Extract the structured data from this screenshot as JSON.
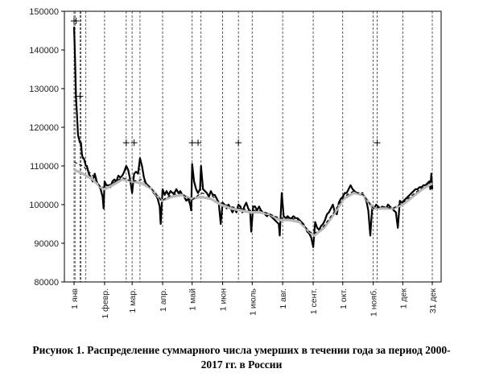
{
  "chart_data": {
    "type": "line",
    "ylim": [
      80000,
      150000
    ],
    "yticks": [
      80000,
      90000,
      100000,
      110000,
      120000,
      130000,
      140000,
      150000
    ],
    "ytick_labels": [
      "80000",
      "90000",
      "100000",
      "110000",
      "120000",
      "130000",
      "140000",
      "150000"
    ],
    "xlim": [
      1,
      365
    ],
    "xticks": [
      {
        "day": 1,
        "label": "1 янв"
      },
      {
        "day": 32,
        "label": "1 февр."
      },
      {
        "day": 60,
        "label": "1 мар."
      },
      {
        "day": 91,
        "label": "1 апр."
      },
      {
        "day": 121,
        "label": "1 май"
      },
      {
        "day": 152,
        "label": "1 июн"
      },
      {
        "day": 182,
        "label": "1 июль"
      },
      {
        "day": 213,
        "label": "1 авг."
      },
      {
        "day": 244,
        "label": "1 сент."
      },
      {
        "day": 274,
        "label": "1 окт."
      },
      {
        "day": 305,
        "label": "1 нояб."
      },
      {
        "day": 335,
        "label": "1 дек"
      },
      {
        "day": 365,
        "label": "31 дек"
      }
    ],
    "vlines_days": [
      1,
      2,
      7,
      8,
      13,
      32,
      54,
      60,
      68,
      91,
      121,
      130,
      152,
      168,
      182,
      213,
      244,
      274,
      305,
      309,
      335,
      365
    ],
    "grid": false,
    "series": [
      {
        "style": "black-thick",
        "points": [
          [
            1,
            146000
          ],
          [
            2,
            138000
          ],
          [
            3,
            128000
          ],
          [
            4,
            123000
          ],
          [
            5,
            118000
          ],
          [
            6,
            117000
          ],
          [
            7,
            116000
          ],
          [
            8,
            116000
          ],
          [
            9,
            113000
          ],
          [
            10,
            112000
          ],
          [
            11,
            112000
          ],
          [
            12,
            111000
          ],
          [
            13,
            110000
          ],
          [
            14,
            110000
          ],
          [
            15,
            109000
          ],
          [
            16,
            108000
          ],
          [
            18,
            107000
          ],
          [
            20,
            106000
          ],
          [
            22,
            108000
          ],
          [
            24,
            106000
          ],
          [
            26,
            105000
          ],
          [
            28,
            104000
          ],
          [
            30,
            102000
          ],
          [
            31,
            99000
          ],
          [
            32,
            106000
          ],
          [
            34,
            105000
          ],
          [
            36,
            105000
          ],
          [
            38,
            104500
          ],
          [
            40,
            106000
          ],
          [
            42,
            106500
          ],
          [
            44,
            106000
          ],
          [
            46,
            107500
          ],
          [
            48,
            107000
          ],
          [
            50,
            107500
          ],
          [
            52,
            108500
          ],
          [
            54,
            110000
          ],
          [
            56,
            109000
          ],
          [
            58,
            106500
          ],
          [
            60,
            103000
          ],
          [
            62,
            108000
          ],
          [
            64,
            108500
          ],
          [
            66,
            108000
          ],
          [
            68,
            112000
          ],
          [
            70,
            110000
          ],
          [
            72,
            107000
          ],
          [
            74,
            105500
          ],
          [
            76,
            105000
          ],
          [
            78,
            104500
          ],
          [
            80,
            104000
          ],
          [
            82,
            103000
          ],
          [
            84,
            102500
          ],
          [
            86,
            101500
          ],
          [
            88,
            99500
          ],
          [
            89,
            95000
          ],
          [
            91,
            104000
          ],
          [
            93,
            102500
          ],
          [
            95,
            103500
          ],
          [
            97,
            102500
          ],
          [
            99,
            103500
          ],
          [
            101,
            103000
          ],
          [
            103,
            103000
          ],
          [
            105,
            104000
          ],
          [
            107,
            103000
          ],
          [
            109,
            103500
          ],
          [
            111,
            102500
          ],
          [
            113,
            102000
          ],
          [
            115,
            101000
          ],
          [
            117,
            101500
          ],
          [
            119,
            100000
          ],
          [
            120,
            98500
          ],
          [
            121,
            110500
          ],
          [
            123,
            106000
          ],
          [
            125,
            104000
          ],
          [
            127,
            103000
          ],
          [
            129,
            104000
          ],
          [
            130,
            110000
          ],
          [
            132,
            104000
          ],
          [
            134,
            103500
          ],
          [
            136,
            103000
          ],
          [
            138,
            102000
          ],
          [
            140,
            103500
          ],
          [
            142,
            102500
          ],
          [
            144,
            102500
          ],
          [
            146,
            101500
          ],
          [
            148,
            100500
          ],
          [
            150,
            95000
          ],
          [
            152,
            100500
          ],
          [
            154,
            100000
          ],
          [
            156,
            99000
          ],
          [
            158,
            100000
          ],
          [
            160,
            99000
          ],
          [
            162,
            98000
          ],
          [
            164,
            99000
          ],
          [
            166,
            98000
          ],
          [
            168,
            100000
          ],
          [
            170,
            99500
          ],
          [
            172,
            98000
          ],
          [
            174,
            99500
          ],
          [
            176,
            100500
          ],
          [
            178,
            99000
          ],
          [
            180,
            98000
          ],
          [
            181,
            93000
          ],
          [
            183,
            99500
          ],
          [
            185,
            99500
          ],
          [
            187,
            98500
          ],
          [
            189,
            99500
          ],
          [
            191,
            98500
          ],
          [
            193,
            98000
          ],
          [
            195,
            97500
          ],
          [
            197,
            97000
          ],
          [
            199,
            97500
          ],
          [
            201,
            97000
          ],
          [
            203,
            96500
          ],
          [
            205,
            96000
          ],
          [
            207,
            95500
          ],
          [
            209,
            95000
          ],
          [
            210,
            92000
          ],
          [
            212,
            103000
          ],
          [
            214,
            97000
          ],
          [
            216,
            96500
          ],
          [
            218,
            97000
          ],
          [
            220,
            96500
          ],
          [
            222,
            96500
          ],
          [
            224,
            97000
          ],
          [
            226,
            96500
          ],
          [
            228,
            96500
          ],
          [
            230,
            96000
          ],
          [
            232,
            95500
          ],
          [
            234,
            95000
          ],
          [
            236,
            94000
          ],
          [
            238,
            93000
          ],
          [
            240,
            92500
          ],
          [
            242,
            91500
          ],
          [
            244,
            89000
          ],
          [
            246,
            95500
          ],
          [
            248,
            94000
          ],
          [
            250,
            93500
          ],
          [
            252,
            94500
          ],
          [
            254,
            95000
          ],
          [
            256,
            96000
          ],
          [
            258,
            97500
          ],
          [
            260,
            98000
          ],
          [
            262,
            99000
          ],
          [
            264,
            100000
          ],
          [
            266,
            98000
          ],
          [
            268,
            97500
          ],
          [
            270,
            100500
          ],
          [
            272,
            101500
          ],
          [
            274,
            102000
          ],
          [
            276,
            103000
          ],
          [
            278,
            103000
          ],
          [
            280,
            104000
          ],
          [
            282,
            105000
          ],
          [
            284,
            104000
          ],
          [
            286,
            103500
          ],
          [
            288,
            103000
          ],
          [
            290,
            103000
          ],
          [
            292,
            102500
          ],
          [
            294,
            103000
          ],
          [
            296,
            102000
          ],
          [
            298,
            101000
          ],
          [
            300,
            98500
          ],
          [
            302,
            92000
          ],
          [
            304,
            99500
          ],
          [
            306,
            99000
          ],
          [
            308,
            100000
          ],
          [
            310,
            99500
          ],
          [
            312,
            99000
          ],
          [
            314,
            99500
          ],
          [
            316,
            99000
          ],
          [
            318,
            99000
          ],
          [
            320,
            100000
          ],
          [
            322,
            99500
          ],
          [
            324,
            99000
          ],
          [
            326,
            98500
          ],
          [
            328,
            98000
          ],
          [
            330,
            94000
          ],
          [
            332,
            101000
          ],
          [
            334,
            100500
          ],
          [
            336,
            101000
          ],
          [
            338,
            101500
          ],
          [
            340,
            102000
          ],
          [
            342,
            102500
          ],
          [
            344,
            103000
          ],
          [
            346,
            103500
          ],
          [
            348,
            104000
          ],
          [
            350,
            104000
          ],
          [
            352,
            104500
          ],
          [
            354,
            104500
          ],
          [
            356,
            105000
          ],
          [
            358,
            105000
          ],
          [
            360,
            105500
          ],
          [
            362,
            106000
          ],
          [
            363,
            104000
          ],
          [
            364,
            108000
          ],
          [
            365,
            104000
          ]
        ]
      },
      {
        "style": "dashed-trend",
        "points": [
          [
            1,
            111000
          ],
          [
            10,
            110000
          ],
          [
            20,
            107500
          ],
          [
            28,
            104500
          ],
          [
            32,
            104500
          ],
          [
            40,
            105500
          ],
          [
            50,
            107000
          ],
          [
            60,
            106000
          ],
          [
            70,
            106500
          ],
          [
            80,
            104000
          ],
          [
            90,
            101000
          ],
          [
            100,
            102500
          ],
          [
            110,
            103000
          ],
          [
            120,
            101000
          ],
          [
            130,
            103000
          ],
          [
            140,
            102500
          ],
          [
            150,
            100500
          ],
          [
            160,
            99500
          ],
          [
            170,
            99000
          ],
          [
            180,
            98500
          ],
          [
            190,
            98500
          ],
          [
            200,
            97500
          ],
          [
            210,
            96500
          ],
          [
            220,
            96500
          ],
          [
            230,
            96000
          ],
          [
            240,
            93000
          ],
          [
            245,
            92500
          ],
          [
            255,
            94500
          ],
          [
            265,
            98000
          ],
          [
            275,
            102000
          ],
          [
            285,
            103500
          ],
          [
            295,
            102500
          ],
          [
            305,
            99000
          ],
          [
            315,
            99500
          ],
          [
            325,
            99000
          ],
          [
            335,
            100500
          ],
          [
            345,
            102500
          ],
          [
            355,
            104500
          ],
          [
            365,
            106000
          ]
        ]
      },
      {
        "style": "gray-smooth",
        "points": [
          [
            1,
            109000
          ],
          [
            10,
            108000
          ],
          [
            20,
            106500
          ],
          [
            28,
            104500
          ],
          [
            32,
            104000
          ],
          [
            40,
            105000
          ],
          [
            50,
            106500
          ],
          [
            60,
            106000
          ],
          [
            70,
            105500
          ],
          [
            80,
            104000
          ],
          [
            90,
            101000
          ],
          [
            100,
            102000
          ],
          [
            110,
            102500
          ],
          [
            120,
            101500
          ],
          [
            130,
            102000
          ],
          [
            140,
            101500
          ],
          [
            150,
            100000
          ],
          [
            160,
            99000
          ],
          [
            170,
            98500
          ],
          [
            180,
            98000
          ],
          [
            190,
            98000
          ],
          [
            200,
            97500
          ],
          [
            210,
            96000
          ],
          [
            220,
            96000
          ],
          [
            230,
            95500
          ],
          [
            240,
            93000
          ],
          [
            245,
            92000
          ],
          [
            255,
            94000
          ],
          [
            265,
            97500
          ],
          [
            275,
            101500
          ],
          [
            285,
            103000
          ],
          [
            295,
            102500
          ],
          [
            305,
            99000
          ],
          [
            315,
            99000
          ],
          [
            325,
            99000
          ],
          [
            335,
            100000
          ],
          [
            345,
            102000
          ],
          [
            355,
            104000
          ],
          [
            365,
            105500
          ]
        ]
      }
    ],
    "plus_markers": [
      [
        1,
        147500
      ],
      [
        3,
        147500
      ],
      [
        7,
        128000
      ],
      [
        54,
        116000
      ],
      [
        62,
        116000
      ],
      [
        121,
        116000
      ],
      [
        127,
        116000
      ],
      [
        168,
        116000
      ],
      [
        309,
        116000
      ]
    ]
  },
  "caption_line1": "Рисунок 1. Распределение суммарного числа умерших в течении года за период 2000-",
  "caption_line2": "2017 гг. в России"
}
